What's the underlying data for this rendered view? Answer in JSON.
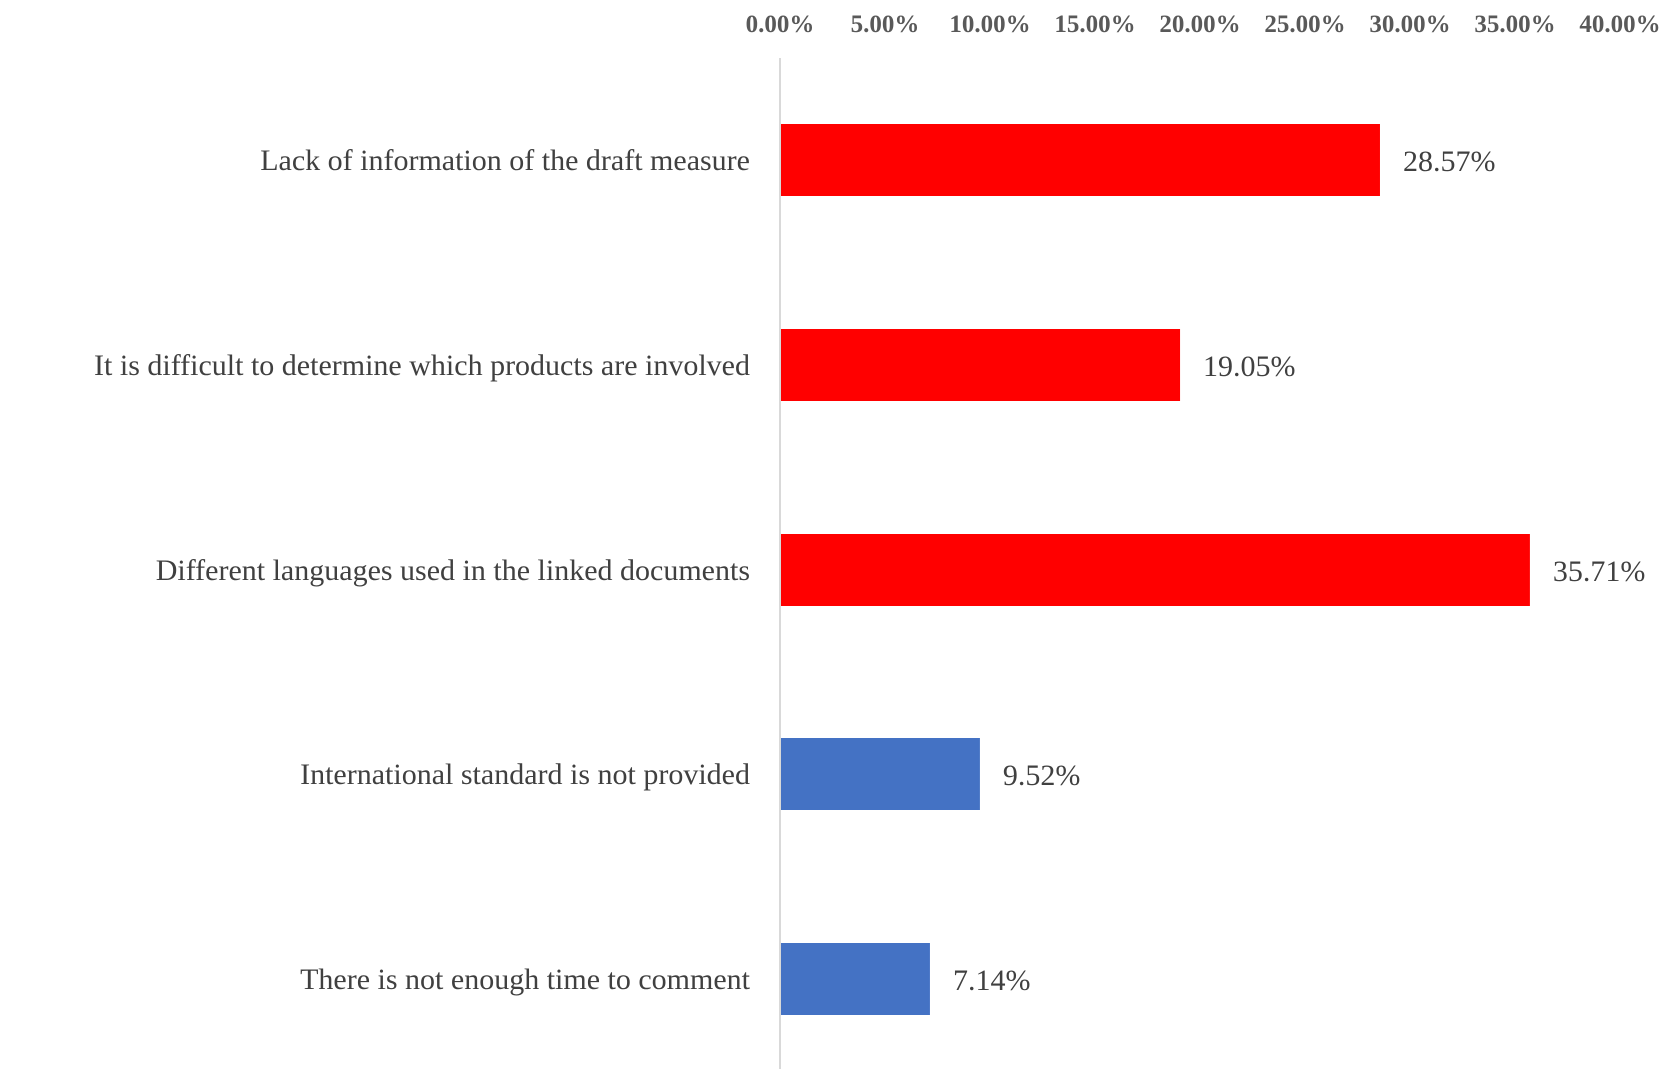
{
  "chart_data": {
    "type": "bar",
    "orientation": "horizontal",
    "x_axis_position": "top",
    "xlim": [
      0,
      40
    ],
    "x_ticks": [
      "0.00%",
      "5.00%",
      "10.00%",
      "15.00%",
      "20.00%",
      "25.00%",
      "30.00%",
      "35.00%",
      "40.00%"
    ],
    "categories": [
      "Lack of information of the draft measure",
      "It is difficult to determine which products are involved",
      "Different languages used in the linked documents",
      "International standard is not provided",
      "There is not enough time to comment"
    ],
    "values": [
      28.57,
      19.05,
      35.71,
      9.52,
      7.14
    ],
    "data_labels": [
      "28.57%",
      "19.05%",
      "35.71%",
      "9.52%",
      "7.14%"
    ],
    "bar_colors": [
      "#ff0000",
      "#ff0000",
      "#ff0000",
      "#4472c4",
      "#4472c4"
    ],
    "axis_line_color": "#d9d9d9",
    "grid": false,
    "legend": "none",
    "title": "",
    "xlabel": "",
    "ylabel": ""
  }
}
